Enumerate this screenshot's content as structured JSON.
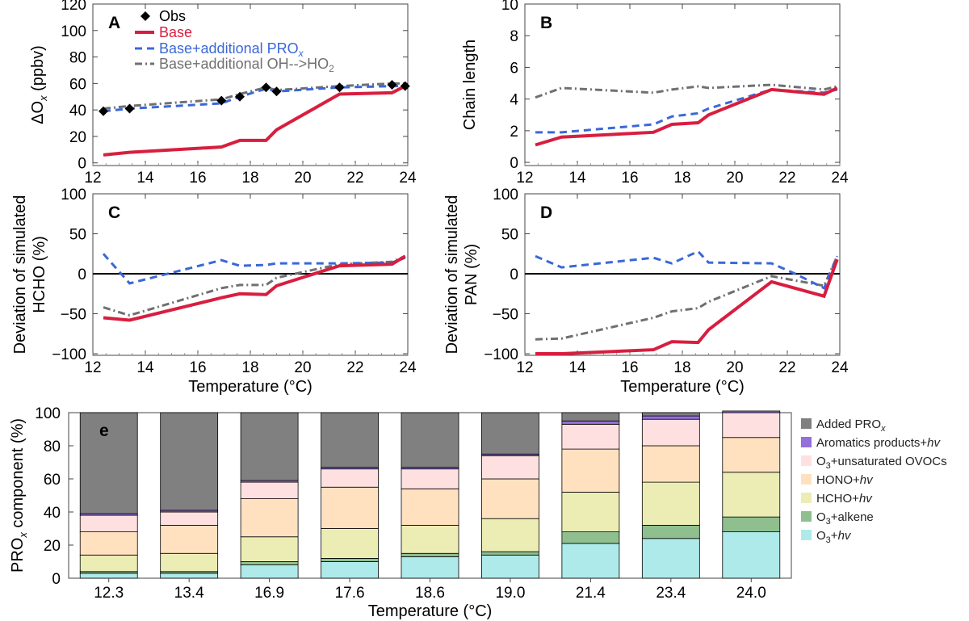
{
  "colors": {
    "base": "#d81e3f",
    "pro": "#3a68d8",
    "oh": "#707070",
    "obs": "#000000",
    "added_prox": "#808080",
    "aromatics": "#9370db",
    "o3_unsat_ovocs": "#ffe0e0",
    "hono": "#ffe1c0",
    "hcho": "#ecedb4",
    "o3_alkene": "#8fbf8f",
    "o3_hv": "#aeeaea"
  },
  "legend_top": {
    "obs": "Obs",
    "base": "Base",
    "pro_main": "Base+additional PRO",
    "pro_sub": "x",
    "oh_main": "Base+additional OH-->HO",
    "oh_sub": "2"
  },
  "chart_data": [
    {
      "id": "A",
      "type": "line",
      "panel_label": "A",
      "ylabel_main": "ΔO",
      "ylabel_sub": "x",
      "ylabel_unit": " (ppbv)",
      "xlabel": "",
      "xlim": [
        12,
        24
      ],
      "ylim": [
        -2,
        120
      ],
      "xticks": [
        "12",
        "14",
        "16",
        "18",
        "20",
        "22",
        "24"
      ],
      "yticks": [
        "0",
        "20",
        "40",
        "60",
        "80",
        "100",
        "120"
      ],
      "series": [
        {
          "name": "Obs",
          "kind": "obs",
          "x": [
            12.4,
            13.4,
            16.9,
            17.6,
            18.6,
            19.0,
            21.4,
            23.4,
            23.9
          ],
          "y": [
            39,
            41,
            47,
            50,
            57,
            54,
            57,
            59,
            58
          ]
        },
        {
          "name": "Base",
          "kind": "base",
          "x": [
            12.4,
            13.4,
            16.9,
            17.6,
            18.6,
            19.0,
            21.4,
            23.4,
            23.9
          ],
          "y": [
            6,
            8,
            12,
            17,
            17,
            25,
            52,
            53,
            58
          ]
        },
        {
          "name": "Base+additional PROx",
          "kind": "pro",
          "x": [
            12.4,
            13.4,
            16.9,
            17.6,
            18.6,
            19.0,
            21.4,
            23.4,
            23.9
          ],
          "y": [
            39,
            41,
            45,
            50,
            56,
            54,
            57,
            58,
            58
          ]
        },
        {
          "name": "Base+additional OH-->HO2",
          "kind": "oh",
          "x": [
            12.4,
            13.4,
            16.9,
            17.6,
            18.6,
            19.0,
            21.4,
            23.4,
            23.9
          ],
          "y": [
            41,
            43,
            48,
            52,
            57,
            55,
            58,
            60,
            60
          ]
        }
      ]
    },
    {
      "id": "B",
      "type": "line",
      "panel_label": "B",
      "ylabel_main": "Chain length",
      "xlabel": "",
      "xlim": [
        12,
        24
      ],
      "ylim": [
        -0.2,
        10
      ],
      "xticks": [
        "12",
        "14",
        "16",
        "18",
        "20",
        "22",
        "24"
      ],
      "yticks": [
        "0",
        "2",
        "4",
        "6",
        "8",
        "10"
      ],
      "series": [
        {
          "name": "Base",
          "kind": "base",
          "x": [
            12.4,
            13.4,
            16.9,
            17.6,
            18.6,
            19.0,
            21.4,
            23.4,
            23.9
          ],
          "y": [
            1.1,
            1.6,
            1.9,
            2.4,
            2.5,
            3.0,
            4.6,
            4.3,
            4.7
          ]
        },
        {
          "name": "Base+additional PROx",
          "kind": "pro",
          "x": [
            12.4,
            13.4,
            16.9,
            17.6,
            18.6,
            19.0,
            21.4,
            23.4,
            23.9
          ],
          "y": [
            1.9,
            1.9,
            2.4,
            2.9,
            3.1,
            3.4,
            4.6,
            4.4,
            4.6
          ]
        },
        {
          "name": "Base+additional OH-->HO2",
          "kind": "oh",
          "x": [
            12.4,
            13.4,
            16.9,
            17.6,
            18.6,
            19.0,
            21.4,
            23.4,
            23.9
          ],
          "y": [
            4.1,
            4.7,
            4.4,
            4.6,
            4.8,
            4.7,
            4.9,
            4.6,
            4.8
          ]
        }
      ]
    },
    {
      "id": "C",
      "type": "line",
      "panel_label": "C",
      "ylabel_main": "Deviation of simulated",
      "ylabel_second": "HCHO (%)",
      "xlabel": "Temperature (°C)",
      "xlim": [
        12,
        24
      ],
      "ylim": [
        -102,
        100
      ],
      "xticks": [
        "12",
        "14",
        "16",
        "18",
        "20",
        "22",
        "24"
      ],
      "yticks": [
        "−100",
        "−50",
        "0",
        "50",
        "100"
      ],
      "series": [
        {
          "name": "Base",
          "kind": "base",
          "x": [
            12.4,
            13.4,
            16.9,
            17.6,
            18.6,
            19.0,
            21.4,
            23.4,
            23.9
          ],
          "y": [
            -55,
            -58,
            -30,
            -25,
            -26,
            -15,
            10,
            12,
            22
          ]
        },
        {
          "name": "Base+additional PROx",
          "kind": "pro",
          "x": [
            12.4,
            13.4,
            16.9,
            17.6,
            18.6,
            19.0,
            21.4,
            23.4,
            23.9
          ],
          "y": [
            25,
            -12,
            17,
            10,
            11,
            13,
            13,
            14,
            20
          ]
        },
        {
          "name": "Base+additional OH-->HO2",
          "kind": "oh",
          "x": [
            12.4,
            13.4,
            16.9,
            17.6,
            18.6,
            19.0,
            21.4,
            23.4,
            23.9
          ],
          "y": [
            -42,
            -52,
            -18,
            -14,
            -14,
            -5,
            12,
            15,
            22
          ]
        }
      ]
    },
    {
      "id": "D",
      "type": "line",
      "panel_label": "D",
      "ylabel_main": "Deviation of simulated",
      "ylabel_second": "PAN (%)",
      "xlabel": "Temperature (°C)",
      "xlim": [
        12,
        24
      ],
      "ylim": [
        -102,
        100
      ],
      "xticks": [
        "12",
        "14",
        "16",
        "18",
        "20",
        "22",
        "24"
      ],
      "yticks": [
        "−100",
        "−50",
        "0",
        "50",
        "100"
      ],
      "series": [
        {
          "name": "Base",
          "kind": "base",
          "x": [
            12.4,
            13.4,
            16.9,
            17.6,
            18.6,
            19.0,
            21.4,
            23.4,
            23.9
          ],
          "y": [
            -100,
            -100,
            -95,
            -85,
            -86,
            -70,
            -10,
            -28,
            18
          ]
        },
        {
          "name": "Base+additional PROx",
          "kind": "pro",
          "x": [
            12.4,
            13.4,
            16.9,
            17.6,
            18.6,
            19.0,
            21.4,
            22.3,
            23.4,
            23.9
          ],
          "y": [
            22,
            8,
            20,
            13,
            28,
            14,
            13,
            0,
            -18,
            22
          ]
        },
        {
          "name": "Base+additional OH-->HO2",
          "kind": "oh",
          "x": [
            12.4,
            13.4,
            16.9,
            17.6,
            18.6,
            19.0,
            21.4,
            23.4,
            23.9
          ],
          "y": [
            -82,
            -81,
            -55,
            -47,
            -43,
            -35,
            -3,
            -15,
            22
          ]
        }
      ]
    },
    {
      "id": "e",
      "type": "bar",
      "stacked": true,
      "panel_label": "e",
      "ylabel_main": "PRO",
      "ylabel_sub": "x",
      "ylabel_unit": " component (%)",
      "xlabel": "Temperature (°C)",
      "ylim": [
        0,
        100
      ],
      "yticks": [
        "0",
        "20",
        "40",
        "60",
        "80",
        "100"
      ],
      "categories": [
        "12.3",
        "13.4",
        "16.9",
        "17.6",
        "18.6",
        "19.0",
        "21.4",
        "23.4",
        "24.0"
      ],
      "series": [
        {
          "name": "O3+hv",
          "key": "o3_hv",
          "values": [
            3,
            3,
            8,
            10,
            13,
            14,
            21,
            24,
            28
          ]
        },
        {
          "name": "O3+alkene",
          "key": "o3_alkene",
          "values": [
            1,
            1,
            2,
            2,
            2,
            2,
            7,
            8,
            9
          ]
        },
        {
          "name": "HCHO+hv",
          "key": "hcho",
          "values": [
            10,
            11,
            15,
            18,
            17,
            20,
            24,
            26,
            27
          ]
        },
        {
          "name": "HONO+hv",
          "key": "hono",
          "values": [
            14,
            17,
            23,
            25,
            22,
            24,
            26,
            22,
            21
          ]
        },
        {
          "name": "O3+unsaturated OVOCs",
          "key": "o3_unsat_ovocs",
          "values": [
            10,
            8,
            10,
            11,
            12,
            14,
            15,
            16,
            15
          ]
        },
        {
          "name": "Aromatics products+hv",
          "key": "aromatics",
          "values": [
            1,
            1,
            1,
            1,
            1,
            1,
            2,
            2,
            1
          ]
        },
        {
          "name": "Added PROx",
          "key": "added_prox",
          "values": [
            61,
            59,
            41,
            33,
            33,
            25,
            5,
            2,
            0
          ]
        }
      ],
      "legend": [
        {
          "key": "added_prox",
          "main": "Added PRO",
          "sub": "x",
          "tail": ""
        },
        {
          "key": "aromatics",
          "main": "Aromatics products+",
          "sub": "",
          "tail": "hv"
        },
        {
          "key": "o3_unsat_ovocs",
          "main": "O",
          "sub": "3",
          "tail": "+unsaturated OVOCs"
        },
        {
          "key": "hono",
          "main": "HONO+",
          "sub": "",
          "tail": "hv"
        },
        {
          "key": "hcho",
          "main": "HCHO+",
          "sub": "",
          "tail": "hv"
        },
        {
          "key": "o3_alkene",
          "main": "O",
          "sub": "3",
          "tail": "+alkene"
        },
        {
          "key": "o3_hv",
          "main": "O",
          "sub": "3",
          "tail": "+hv"
        }
      ]
    }
  ]
}
